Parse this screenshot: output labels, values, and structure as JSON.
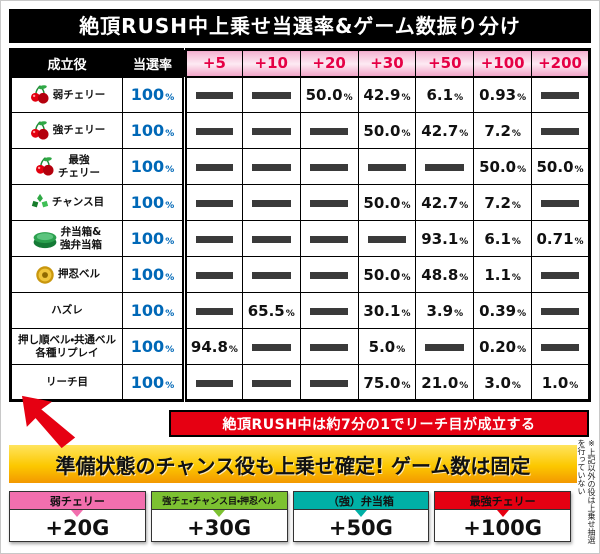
{
  "title": "絶頂RUSH中上乗せ当選率&ゲーム数振り分け",
  "chart_data": {
    "type": "table",
    "title": "絶頂RUSH中上乗せ当選率&ゲーム数振り分け",
    "columns": [
      "成立役",
      "当選率",
      "+5",
      "+10",
      "+20",
      "+30",
      "+50",
      "+100",
      "+200"
    ],
    "unit": "%",
    "rows": [
      {
        "role": "弱チェリー",
        "icon": "cherry-icon",
        "rate_pct": "100",
        "values": [
          "",
          "",
          "50.0",
          "42.9",
          "6.1",
          "0.93",
          ""
        ]
      },
      {
        "role": "強チェリー",
        "icon": "cherry-icon",
        "rate_pct": "100",
        "values": [
          "",
          "",
          "",
          "50.0",
          "42.7",
          "7.2",
          ""
        ]
      },
      {
        "role": "最強\nチェリー",
        "icon": "cherry-icon",
        "rate_pct": "100",
        "values": [
          "",
          "",
          "",
          "",
          "",
          "50.0",
          "50.0"
        ]
      },
      {
        "role": "チャンス目",
        "icon": "chance-icon",
        "rate_pct": "100",
        "values": [
          "",
          "",
          "",
          "50.0",
          "42.7",
          "7.2",
          ""
        ]
      },
      {
        "role": "弁当箱&\n強弁当箱",
        "icon": "bento-icon",
        "rate_pct": "100",
        "values": [
          "",
          "",
          "",
          "",
          "93.1",
          "6.1",
          "0.71"
        ]
      },
      {
        "role": "押忍ベル",
        "icon": "bell-icon",
        "rate_pct": "100",
        "values": [
          "",
          "",
          "",
          "50.0",
          "48.8",
          "1.1",
          ""
        ]
      },
      {
        "role": "ハズレ",
        "icon": "",
        "rate_pct": "100",
        "values": [
          "",
          "65.5",
          "",
          "30.1",
          "3.9",
          "0.39",
          ""
        ]
      },
      {
        "role": "押し順ベル・共通ベル\n各種リプレイ",
        "icon": "",
        "rate_pct": "100",
        "values": [
          "94.8",
          "",
          "",
          "5.0",
          "",
          "0.20",
          ""
        ]
      },
      {
        "role": "リーチ目",
        "icon": "",
        "rate_pct": "100",
        "values": [
          "",
          "",
          "",
          "75.0",
          "21.0",
          "3.0",
          "1.0"
        ]
      }
    ]
  },
  "callout": {
    "text": "絶頂RUSH中は約7分の1でリーチ目が成立する"
  },
  "banner": {
    "text": "準備状態のチャンス役も上乗せ確定! ゲーム数は固定"
  },
  "bonus_boxes": [
    {
      "label": "弱チェリー",
      "value": "+20G",
      "color": "#f26fae"
    },
    {
      "label": "強チェ・チャンス目・押忍ベル",
      "value": "+30G",
      "color": "#7cc131"
    },
    {
      "label": "（強）弁当箱",
      "value": "+50G",
      "color": "#00b0a6"
    },
    {
      "label": "最強チェリー",
      "value": "+100G",
      "color": "#e60012"
    }
  ],
  "side_note": "※上記以外の役は上乗せ抽選を行っていない",
  "colors": {
    "accent_red": "#e60012",
    "rate_blue": "#0068b7",
    "header_text_red": "#e50045",
    "banner_yellow_top": "#ffe45e",
    "banner_yellow_bottom": "#f39800",
    "dash_gray": "#3a3a3a"
  }
}
